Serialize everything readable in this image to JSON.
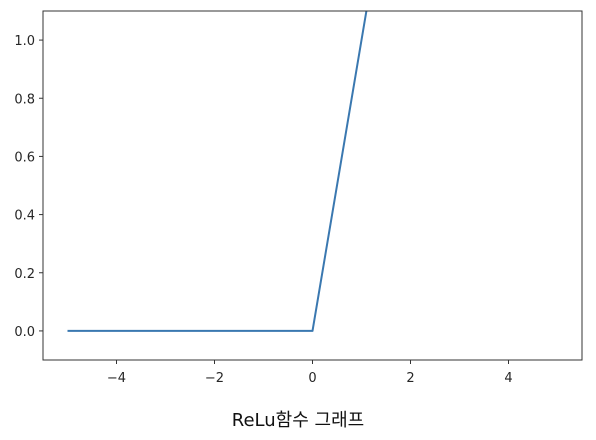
{
  "chart_data": {
    "type": "line",
    "title": "",
    "xlabel": "",
    "ylabel": "",
    "x": [
      -5,
      -4.9,
      0,
      1.1
    ],
    "series": [
      {
        "values": [
          0,
          0,
          0,
          1.1
        ],
        "color": "#3a78b0"
      }
    ],
    "xlim": [
      -5.5,
      5.5
    ],
    "ylim": [
      -0.1,
      1.1
    ],
    "xticks": [
      -4,
      -2,
      0,
      2,
      4
    ],
    "xtick_labels": [
      "−4",
      "−2",
      "0",
      "2",
      "4"
    ],
    "yticks": [
      0.0,
      0.2,
      0.4,
      0.6,
      0.8,
      1.0
    ],
    "ytick_labels": [
      "0.0",
      "0.2",
      "0.4",
      "0.6",
      "0.8",
      "1.0"
    ],
    "grid": false,
    "legend": "none"
  },
  "caption": "ReLu함수 그래프"
}
